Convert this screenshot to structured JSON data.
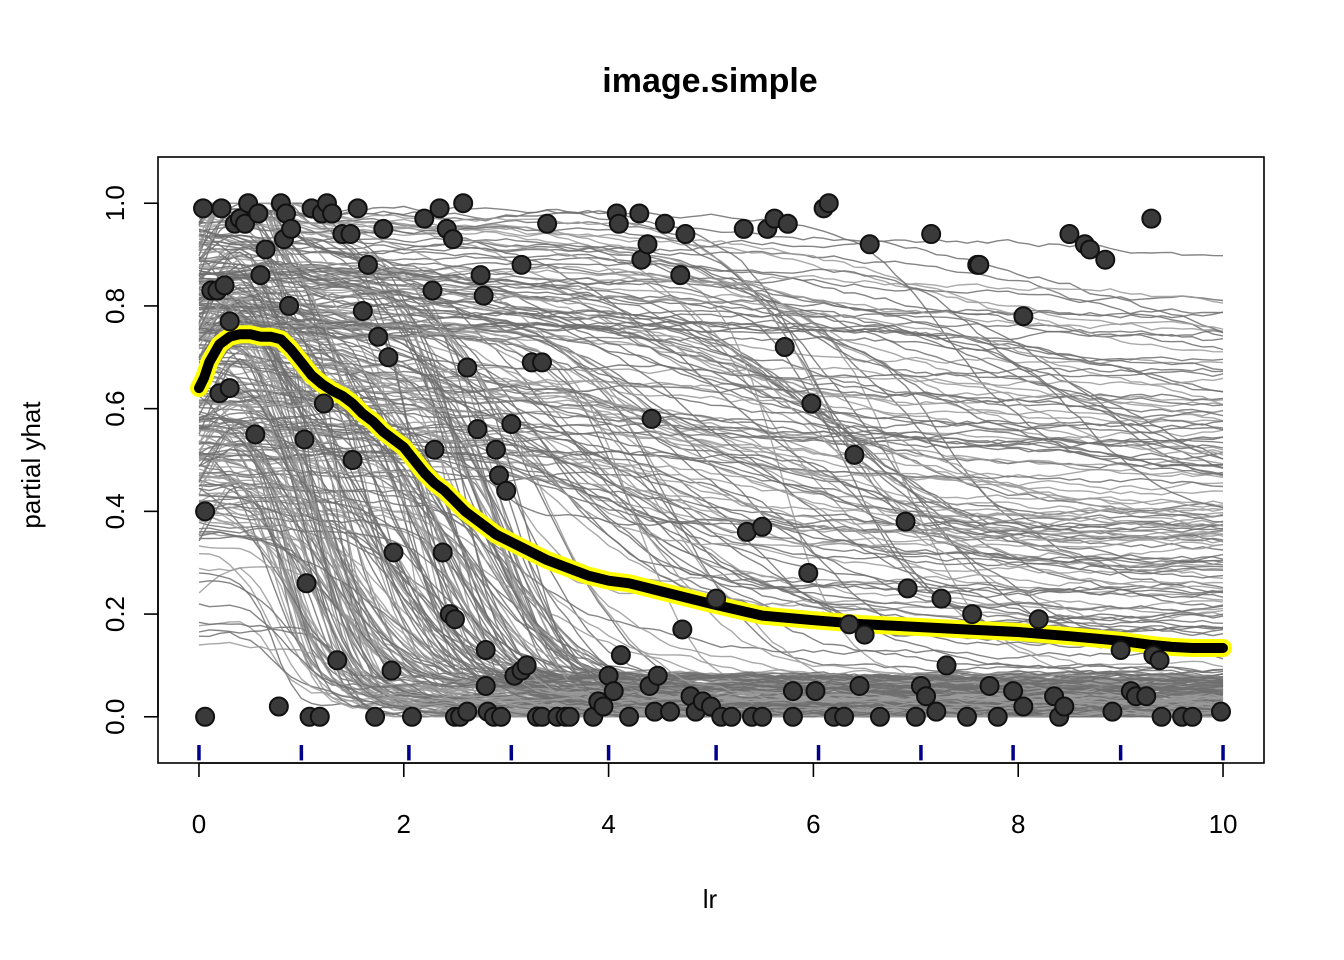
{
  "chart_data": {
    "type": "line",
    "title": "image.simple",
    "xlabel": "lr",
    "ylabel": "partial yhat",
    "xlim": [
      -0.4,
      10.4
    ],
    "ylim": [
      -0.09,
      1.09
    ],
    "x_ticks": [
      0,
      2,
      4,
      6,
      8,
      10
    ],
    "x_tick_labels": [
      "0",
      "2",
      "4",
      "6",
      "8",
      "10"
    ],
    "y_ticks": [
      0.0,
      0.2,
      0.4,
      0.6,
      0.8,
      1.0
    ],
    "y_tick_labels": [
      "0.0",
      "0.2",
      "0.4",
      "0.6",
      "0.8",
      "1.0"
    ],
    "rug_x": [
      0,
      1,
      2.05,
      3.05,
      4,
      5.05,
      6.05,
      7.05,
      7.95,
      9,
      10
    ],
    "colors": {
      "ice_lines": "#6e6e6e",
      "average_line": "#000000",
      "average_halo": "#ffff00",
      "points": "#3a3a3a",
      "rug": "#00008b"
    },
    "series": [
      {
        "x": [
          0,
          0.05,
          0.1,
          0.2,
          0.3,
          0.4,
          0.5,
          0.6,
          0.7,
          0.8,
          0.9,
          1.0,
          1.1,
          1.2,
          1.3,
          1.4,
          1.5,
          1.6,
          1.7,
          1.8,
          1.9,
          2.0,
          2.1,
          2.2,
          2.3,
          2.4,
          2.5,
          2.6,
          2.7,
          2.8,
          2.9,
          3.0,
          3.2,
          3.4,
          3.6,
          3.8,
          4.0,
          4.2,
          4.5,
          5.0,
          5.5,
          6.0,
          6.5,
          7.0,
          7.5,
          8.0,
          8.5,
          9.0,
          9.3,
          9.5,
          9.7,
          10.0
        ],
        "values": [
          0.64,
          0.66,
          0.69,
          0.725,
          0.74,
          0.745,
          0.745,
          0.74,
          0.74,
          0.735,
          0.715,
          0.69,
          0.665,
          0.648,
          0.635,
          0.625,
          0.61,
          0.59,
          0.575,
          0.555,
          0.54,
          0.525,
          0.5,
          0.475,
          0.455,
          0.44,
          0.42,
          0.4,
          0.385,
          0.37,
          0.355,
          0.345,
          0.325,
          0.305,
          0.29,
          0.275,
          0.265,
          0.26,
          0.245,
          0.22,
          0.197,
          0.188,
          0.18,
          0.175,
          0.17,
          0.165,
          0.157,
          0.148,
          0.14,
          0.136,
          0.134,
          0.134
        ]
      }
    ],
    "points": [
      [
        0.04,
        0.99
      ],
      [
        0.06,
        0.4
      ],
      [
        0.06,
        0.0
      ],
      [
        0.12,
        0.83
      ],
      [
        0.18,
        0.83
      ],
      [
        0.2,
        0.63
      ],
      [
        0.22,
        0.99
      ],
      [
        0.25,
        0.84
      ],
      [
        0.3,
        0.77
      ],
      [
        0.3,
        0.64
      ],
      [
        0.35,
        0.96
      ],
      [
        0.4,
        0.97
      ],
      [
        0.45,
        0.96
      ],
      [
        0.48,
        1.0
      ],
      [
        0.55,
        0.55
      ],
      [
        0.58,
        0.98
      ],
      [
        0.6,
        0.86
      ],
      [
        0.65,
        0.91
      ],
      [
        0.78,
        0.02
      ],
      [
        0.8,
        1.0
      ],
      [
        0.83,
        0.93
      ],
      [
        0.85,
        0.98
      ],
      [
        0.88,
        0.8
      ],
      [
        0.9,
        0.95
      ],
      [
        1.03,
        0.54
      ],
      [
        1.05,
        0.26
      ],
      [
        1.08,
        0.0
      ],
      [
        1.1,
        0.99
      ],
      [
        1.18,
        0.0
      ],
      [
        1.2,
        0.98
      ],
      [
        1.22,
        0.61
      ],
      [
        1.25,
        1.0
      ],
      [
        1.3,
        0.98
      ],
      [
        1.35,
        0.11
      ],
      [
        1.4,
        0.94
      ],
      [
        1.48,
        0.94
      ],
      [
        1.5,
        0.5
      ],
      [
        1.55,
        0.99
      ],
      [
        1.6,
        0.79
      ],
      [
        1.65,
        0.88
      ],
      [
        1.72,
        0.0
      ],
      [
        1.75,
        0.74
      ],
      [
        1.8,
        0.95
      ],
      [
        1.85,
        0.7
      ],
      [
        1.9,
        0.32
      ],
      [
        1.88,
        0.09
      ],
      [
        2.08,
        0.0
      ],
      [
        2.2,
        0.97
      ],
      [
        2.28,
        0.83
      ],
      [
        2.3,
        0.52
      ],
      [
        2.35,
        0.99
      ],
      [
        2.38,
        0.32
      ],
      [
        2.42,
        0.95
      ],
      [
        2.45,
        0.2
      ],
      [
        2.48,
        0.93
      ],
      [
        2.5,
        0.19
      ],
      [
        2.5,
        0.0
      ],
      [
        2.55,
        0.0
      ],
      [
        2.58,
        1.0
      ],
      [
        2.62,
        0.68
      ],
      [
        2.62,
        0.01
      ],
      [
        2.72,
        0.56
      ],
      [
        2.75,
        0.86
      ],
      [
        2.78,
        0.82
      ],
      [
        2.8,
        0.13
      ],
      [
        2.8,
        0.06
      ],
      [
        2.82,
        0.01
      ],
      [
        2.88,
        0.0
      ],
      [
        2.9,
        0.52
      ],
      [
        2.93,
        0.47
      ],
      [
        2.95,
        0.0
      ],
      [
        3.0,
        0.44
      ],
      [
        3.05,
        0.57
      ],
      [
        3.08,
        0.08
      ],
      [
        3.15,
        0.88
      ],
      [
        3.15,
        0.09
      ],
      [
        3.2,
        0.1
      ],
      [
        3.25,
        0.69
      ],
      [
        3.3,
        0.0
      ],
      [
        3.35,
        0.69
      ],
      [
        3.35,
        0.0
      ],
      [
        3.4,
        0.96
      ],
      [
        3.5,
        0.0
      ],
      [
        3.58,
        0.0
      ],
      [
        3.62,
        0.0
      ],
      [
        3.85,
        0.0
      ],
      [
        3.9,
        0.03
      ],
      [
        3.95,
        0.02
      ],
      [
        4.0,
        0.08
      ],
      [
        4.05,
        0.05
      ],
      [
        4.08,
        0.98
      ],
      [
        4.1,
        0.96
      ],
      [
        4.12,
        0.12
      ],
      [
        4.2,
        0.0
      ],
      [
        4.3,
        0.98
      ],
      [
        4.32,
        0.89
      ],
      [
        4.38,
        0.92
      ],
      [
        4.4,
        0.06
      ],
      [
        4.42,
        0.58
      ],
      [
        4.45,
        0.01
      ],
      [
        4.48,
        0.08
      ],
      [
        4.55,
        0.96
      ],
      [
        4.6,
        0.01
      ],
      [
        4.7,
        0.86
      ],
      [
        4.72,
        0.17
      ],
      [
        4.75,
        0.94
      ],
      [
        4.8,
        0.04
      ],
      [
        4.85,
        0.01
      ],
      [
        4.92,
        0.03
      ],
      [
        5.0,
        0.02
      ],
      [
        5.05,
        0.23
      ],
      [
        5.1,
        0.0
      ],
      [
        5.2,
        0.0
      ],
      [
        5.32,
        0.95
      ],
      [
        5.35,
        0.36
      ],
      [
        5.4,
        0.0
      ],
      [
        5.5,
        0.37
      ],
      [
        5.5,
        0.0
      ],
      [
        5.55,
        0.95
      ],
      [
        5.62,
        0.97
      ],
      [
        5.72,
        0.72
      ],
      [
        5.75,
        0.96
      ],
      [
        5.8,
        0.05
      ],
      [
        5.8,
        0.0
      ],
      [
        5.95,
        0.28
      ],
      [
        5.98,
        0.61
      ],
      [
        6.02,
        0.05
      ],
      [
        6.1,
        0.99
      ],
      [
        6.15,
        1.0
      ],
      [
        6.2,
        0.0
      ],
      [
        6.3,
        0.0
      ],
      [
        6.35,
        0.18
      ],
      [
        6.4,
        0.51
      ],
      [
        6.45,
        0.06
      ],
      [
        6.5,
        0.16
      ],
      [
        6.55,
        0.92
      ],
      [
        6.65,
        0.0
      ],
      [
        6.9,
        0.38
      ],
      [
        6.92,
        0.25
      ],
      [
        7.0,
        0.0
      ],
      [
        7.05,
        0.06
      ],
      [
        7.1,
        0.04
      ],
      [
        7.15,
        0.94
      ],
      [
        7.2,
        0.01
      ],
      [
        7.25,
        0.23
      ],
      [
        7.3,
        0.1
      ],
      [
        7.5,
        0.0
      ],
      [
        7.55,
        0.2
      ],
      [
        7.6,
        0.88
      ],
      [
        7.62,
        0.88
      ],
      [
        7.72,
        0.06
      ],
      [
        7.8,
        0.0
      ],
      [
        7.95,
        0.05
      ],
      [
        8.05,
        0.78
      ],
      [
        8.05,
        0.02
      ],
      [
        8.2,
        0.19
      ],
      [
        8.35,
        0.04
      ],
      [
        8.4,
        0.0
      ],
      [
        8.45,
        0.02
      ],
      [
        8.5,
        0.94
      ],
      [
        8.65,
        0.92
      ],
      [
        8.7,
        0.91
      ],
      [
        8.85,
        0.89
      ],
      [
        8.92,
        0.01
      ],
      [
        9.0,
        0.13
      ],
      [
        9.1,
        0.05
      ],
      [
        9.15,
        0.04
      ],
      [
        9.25,
        0.04
      ],
      [
        9.3,
        0.97
      ],
      [
        9.32,
        0.12
      ],
      [
        9.38,
        0.11
      ],
      [
        9.4,
        0.0
      ],
      [
        9.6,
        0.0
      ],
      [
        9.7,
        0.0
      ],
      [
        9.98,
        0.01
      ]
    ]
  }
}
